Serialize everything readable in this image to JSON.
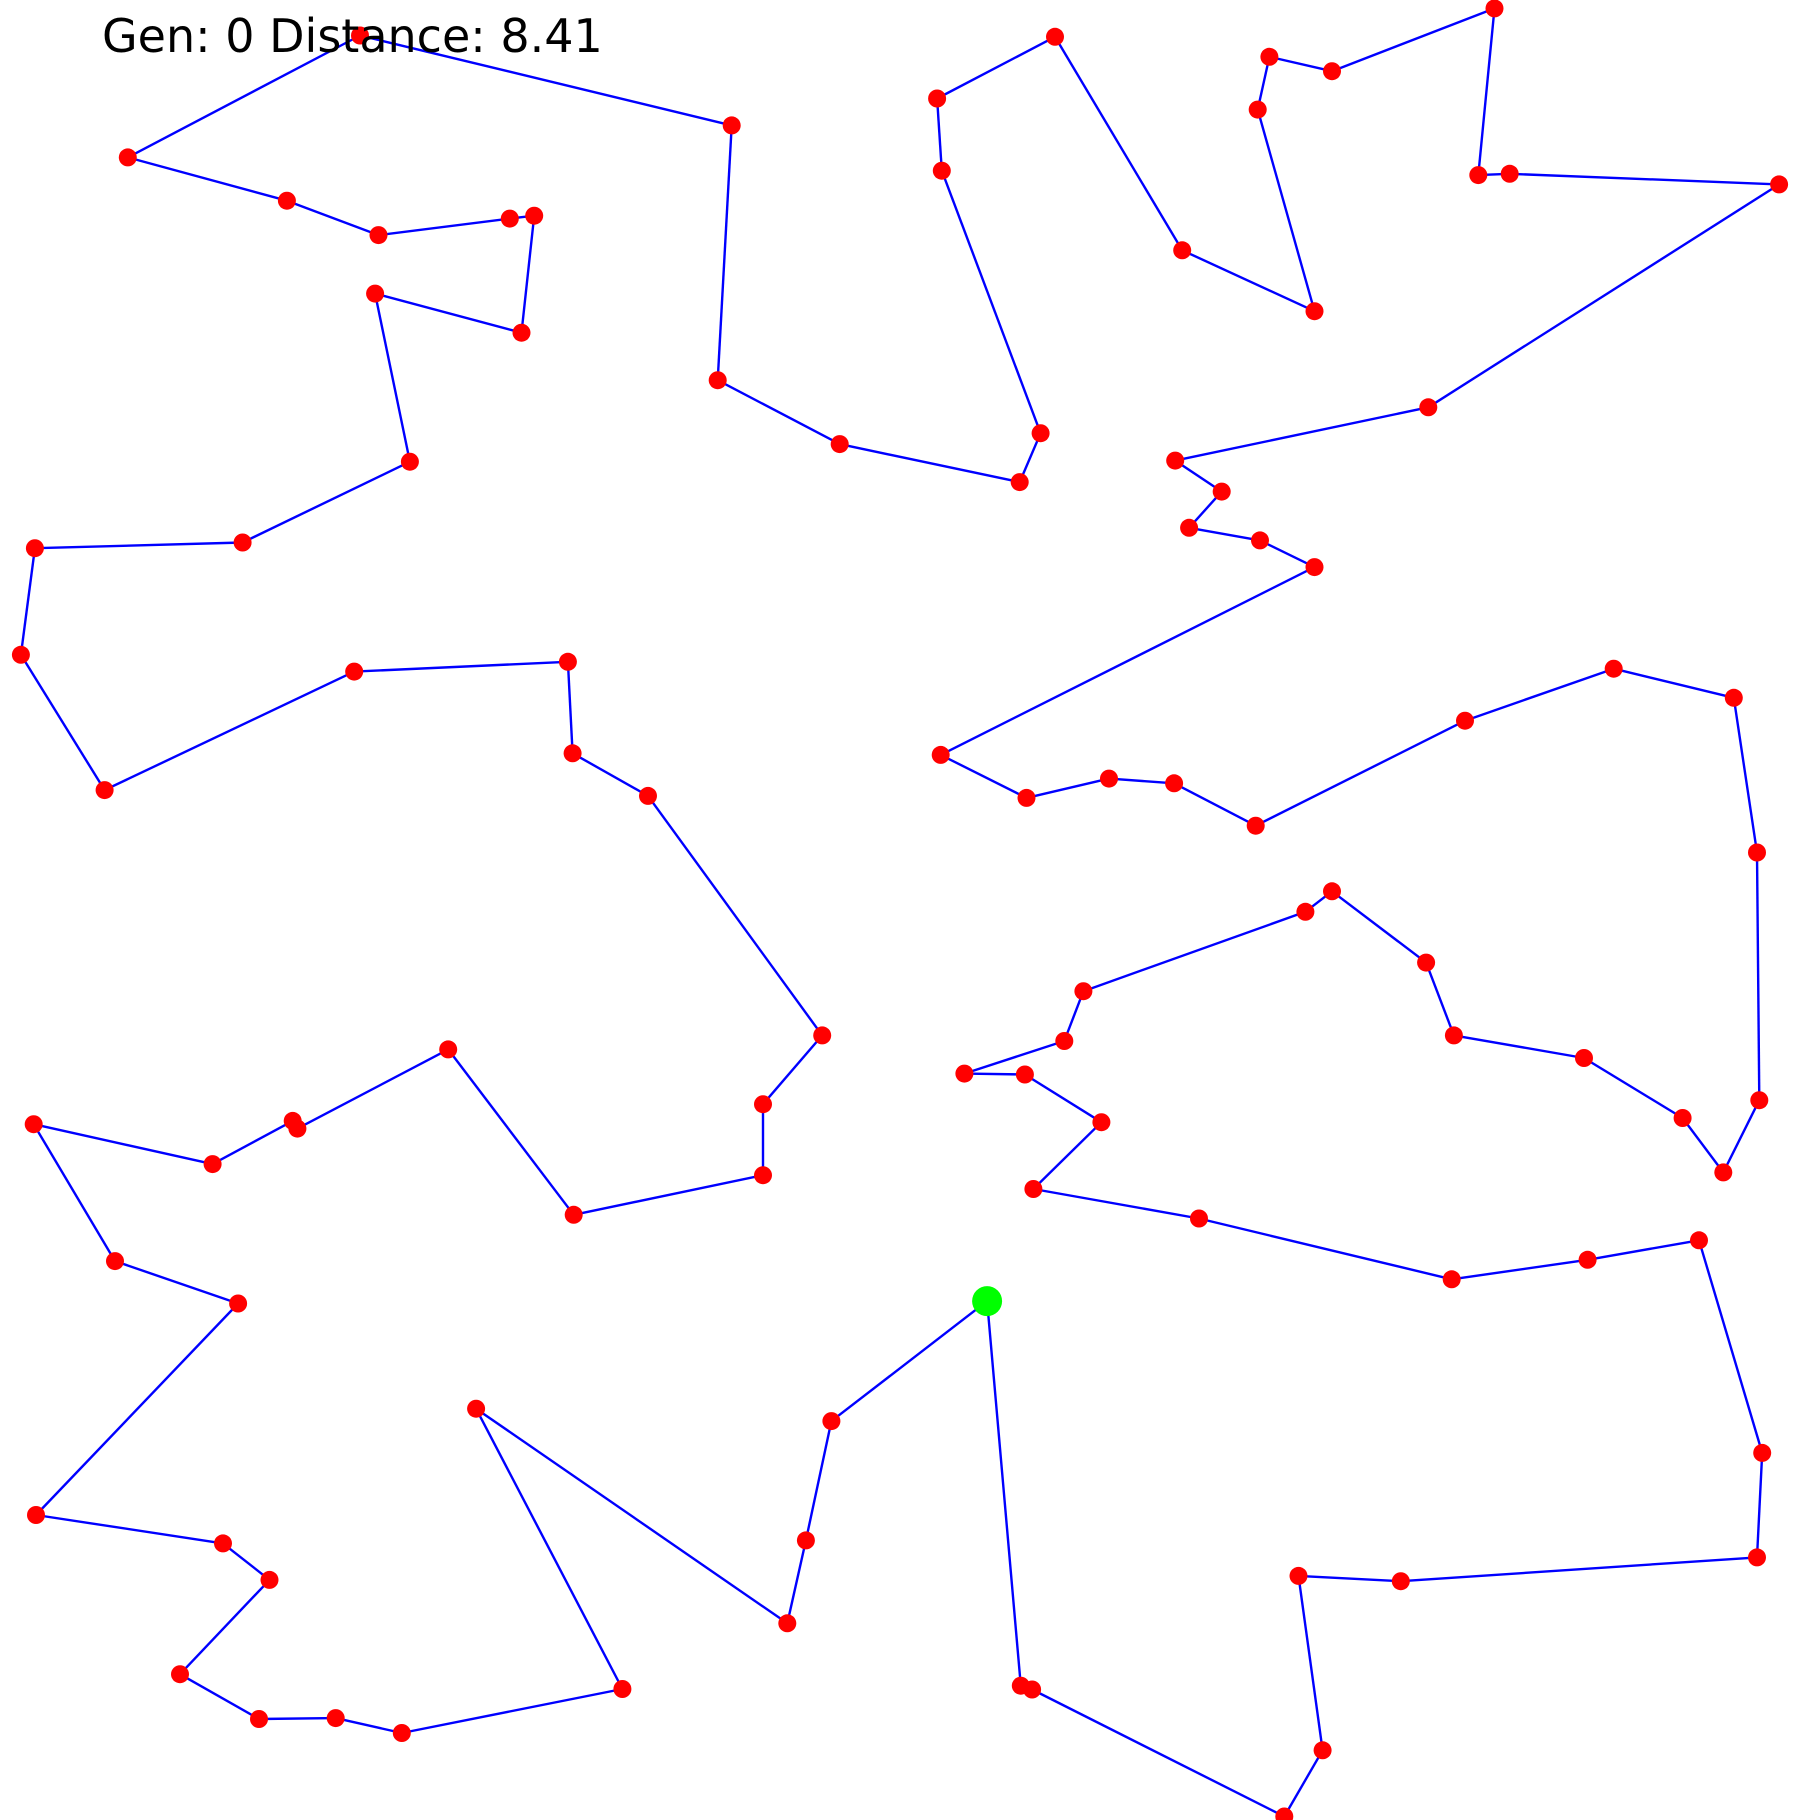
{
  "status": {
    "gen_label": "Gen:",
    "gen_value": "0",
    "distance_label": "Distance:",
    "distance_value": "8.41"
  },
  "colors": {
    "background": "#ffffff",
    "route_line": "#0000ff",
    "city": "#ff0000",
    "start_city": "#00ff00",
    "text": "#000000"
  },
  "tour": {
    "start_city_index": 0,
    "closed": false,
    "cities": [
      [
        0.5484,
        0.7149
      ],
      [
        0.5671,
        0.9262
      ],
      [
        0.5734,
        0.9283
      ],
      [
        0.7135,
        0.9981
      ],
      [
        0.7348,
        0.9617
      ],
      [
        0.7214,
        0.8659
      ],
      [
        0.7782,
        0.8688
      ],
      [
        0.9761,
        0.8557
      ],
      [
        0.979,
        0.7983
      ],
      [
        0.9439,
        0.6815
      ],
      [
        0.882,
        0.6922
      ],
      [
        0.8065,
        0.7029
      ],
      [
        0.6661,
        0.6695
      ],
      [
        0.5741,
        0.6533
      ],
      [
        0.6119,
        0.6166
      ],
      [
        0.5694,
        0.5904
      ],
      [
        0.5358,
        0.5899
      ],
      [
        0.5913,
        0.572
      ],
      [
        0.6019,
        0.5446
      ],
      [
        0.7252,
        0.501
      ],
      [
        0.74,
        0.4897
      ],
      [
        0.7923,
        0.5289
      ],
      [
        0.8077,
        0.5689
      ],
      [
        0.88,
        0.5813
      ],
      [
        0.9348,
        0.6143
      ],
      [
        0.9574,
        0.6442
      ],
      [
        0.9774,
        0.6045
      ],
      [
        0.9761,
        0.4684
      ],
      [
        0.9632,
        0.3834
      ],
      [
        0.8965,
        0.3674
      ],
      [
        0.8139,
        0.396
      ],
      [
        0.6976,
        0.4537
      ],
      [
        0.6523,
        0.4304
      ],
      [
        0.6161,
        0.4278
      ],
      [
        0.5703,
        0.4384
      ],
      [
        0.5226,
        0.4148
      ],
      [
        0.7303,
        0.3116
      ],
      [
        0.7,
        0.2969
      ],
      [
        0.6606,
        0.29
      ],
      [
        0.6787,
        0.2701
      ],
      [
        0.6529,
        0.2531
      ],
      [
        0.7935,
        0.2238
      ],
      [
        0.9884,
        0.1013
      ],
      [
        0.8387,
        0.0955
      ],
      [
        0.8213,
        0.0962
      ],
      [
        0.8303,
        0.0046
      ],
      [
        0.74,
        0.0391
      ],
      [
        0.7052,
        0.0312
      ],
      [
        0.6987,
        0.0602
      ],
      [
        0.7303,
        0.171
      ],
      [
        0.6568,
        0.1375
      ],
      [
        0.5861,
        0.0202
      ],
      [
        0.5206,
        0.0541
      ],
      [
        0.5232,
        0.0938
      ],
      [
        0.5781,
        0.238
      ],
      [
        0.5665,
        0.2649
      ],
      [
        0.4665,
        0.244
      ],
      [
        0.3987,
        0.2089
      ],
      [
        0.4065,
        0.0689
      ],
      [
        0.2,
        0.0195
      ],
      [
        0.071,
        0.0865
      ],
      [
        0.1594,
        0.1103
      ],
      [
        0.2103,
        0.1292
      ],
      [
        0.2832,
        0.1201
      ],
      [
        0.2968,
        0.1185
      ],
      [
        0.2897,
        0.1828
      ],
      [
        0.2084,
        0.1613
      ],
      [
        0.2277,
        0.2537
      ],
      [
        0.1348,
        0.2981
      ],
      [
        0.0194,
        0.3012
      ],
      [
        0.0116,
        0.3598
      ],
      [
        0.0581,
        0.4341
      ],
      [
        0.1968,
        0.369
      ],
      [
        0.3155,
        0.3636
      ],
      [
        0.3181,
        0.4139
      ],
      [
        0.36,
        0.4373
      ],
      [
        0.4568,
        0.5689
      ],
      [
        0.4239,
        0.6067
      ],
      [
        0.4239,
        0.6457
      ],
      [
        0.3187,
        0.6675
      ],
      [
        0.249,
        0.5766
      ],
      [
        0.1652,
        0.6201
      ],
      [
        0.1626,
        0.6159
      ],
      [
        0.1181,
        0.6396
      ],
      [
        0.0187,
        0.6177
      ],
      [
        0.0639,
        0.6929
      ],
      [
        0.1323,
        0.7162
      ],
      [
        0.02,
        0.8324
      ],
      [
        0.1239,
        0.848
      ],
      [
        0.1497,
        0.8681
      ],
      [
        0.1,
        0.9199
      ],
      [
        0.1439,
        0.9445
      ],
      [
        0.1865,
        0.944
      ],
      [
        0.2232,
        0.9522
      ],
      [
        0.3458,
        0.928
      ],
      [
        0.2645,
        0.774
      ],
      [
        0.4374,
        0.8919
      ],
      [
        0.4477,
        0.8464
      ],
      [
        0.4619,
        0.7808
      ],
      [
        0.5484,
        0.7149
      ]
    ]
  }
}
